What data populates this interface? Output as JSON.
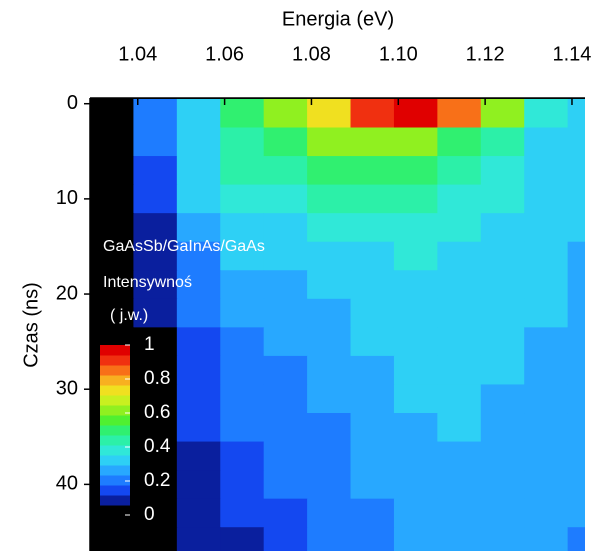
{
  "chart_data": {
    "type": "heatmap",
    "xlabel": "Energia (eV)",
    "ylabel": "Czas (ns)",
    "annotations": [
      "GaAsSb/GaInAs/GaAs",
      "Intensywnoś",
      "( j.w.)"
    ],
    "xlim": [
      1.029,
      1.143
    ],
    "ylim": [
      -0.6,
      47
    ],
    "y_reversed": true,
    "x_axis_position": "top",
    "xticks": [
      1.04,
      1.06,
      1.08,
      {
        "value": 1.1,
        "label": "1.10"
      },
      1.12,
      1.14
    ],
    "yticks": [
      0,
      10,
      20,
      30,
      40
    ],
    "x": [
      1.034,
      1.044,
      1.054,
      1.064,
      1.074,
      1.084,
      1.094,
      1.104,
      1.114,
      1.124,
      1.134,
      1.144
    ],
    "y": [
      1,
      4,
      7,
      10,
      13,
      16,
      19,
      22,
      25,
      28,
      31,
      34,
      37,
      40,
      43,
      46
    ],
    "z": [
      [
        0.02,
        0.2,
        0.35,
        0.5,
        0.6,
        0.75,
        0.9,
        0.95,
        0.85,
        0.6,
        0.4,
        0.3
      ],
      [
        0.02,
        0.18,
        0.33,
        0.45,
        0.52,
        0.6,
        0.62,
        0.6,
        0.52,
        0.42,
        0.35,
        0.3
      ],
      [
        0.01,
        0.15,
        0.32,
        0.42,
        0.47,
        0.5,
        0.5,
        0.48,
        0.44,
        0.38,
        0.33,
        0.3
      ],
      [
        0.01,
        0.12,
        0.3,
        0.38,
        0.4,
        0.42,
        0.43,
        0.42,
        0.4,
        0.36,
        0.33,
        0.3
      ],
      [
        0.01,
        0.1,
        0.26,
        0.33,
        0.35,
        0.37,
        0.38,
        0.38,
        0.37,
        0.34,
        0.32,
        0.3
      ],
      [
        0.01,
        0.08,
        0.23,
        0.3,
        0.32,
        0.33,
        0.35,
        0.36,
        0.35,
        0.33,
        0.31,
        0.29
      ],
      [
        0.01,
        0.07,
        0.21,
        0.27,
        0.29,
        0.31,
        0.33,
        0.34,
        0.34,
        0.32,
        0.3,
        0.28
      ],
      [
        0.01,
        0.06,
        0.19,
        0.25,
        0.27,
        0.29,
        0.31,
        0.33,
        0.33,
        0.32,
        0.3,
        0.28
      ],
      [
        0.01,
        0.05,
        0.17,
        0.22,
        0.25,
        0.27,
        0.3,
        0.32,
        0.32,
        0.31,
        0.29,
        0.27
      ],
      [
        0.01,
        0.05,
        0.15,
        0.2,
        0.23,
        0.26,
        0.28,
        0.31,
        0.31,
        0.3,
        0.28,
        0.26
      ],
      [
        0.01,
        0.04,
        0.13,
        0.19,
        0.22,
        0.24,
        0.27,
        0.3,
        0.3,
        0.29,
        0.28,
        0.26
      ],
      [
        0.01,
        0.04,
        0.12,
        0.18,
        0.21,
        0.23,
        0.26,
        0.29,
        0.3,
        0.29,
        0.27,
        0.25
      ],
      [
        0.01,
        0.03,
        0.11,
        0.17,
        0.2,
        0.22,
        0.25,
        0.28,
        0.29,
        0.28,
        0.27,
        0.25
      ],
      [
        0.01,
        0.03,
        0.1,
        0.15,
        0.19,
        0.21,
        0.24,
        0.27,
        0.28,
        0.28,
        0.26,
        0.24
      ],
      [
        0.01,
        0.02,
        0.08,
        0.13,
        0.17,
        0.2,
        0.23,
        0.26,
        0.27,
        0.27,
        0.26,
        0.24
      ],
      [
        0.01,
        0.02,
        0.06,
        0.1,
        0.15,
        0.19,
        0.22,
        0.25,
        0.26,
        0.26,
        0.25,
        0.23
      ]
    ],
    "colorscale": [
      "#000000",
      "#0a1f9e",
      "#1448f0",
      "#1e7cff",
      "#28a8ff",
      "#2ed0f5",
      "#30e8d8",
      "#2cf0a8",
      "#30f070",
      "#50f030",
      "#90f020",
      "#c8f020",
      "#f0e020",
      "#f8b020",
      "#f87018",
      "#f03010",
      "#e00000"
    ],
    "zlim": [
      0,
      1
    ],
    "colorbar_ticks": [
      0,
      0.2,
      0.4,
      0.6,
      0.8,
      1
    ]
  }
}
